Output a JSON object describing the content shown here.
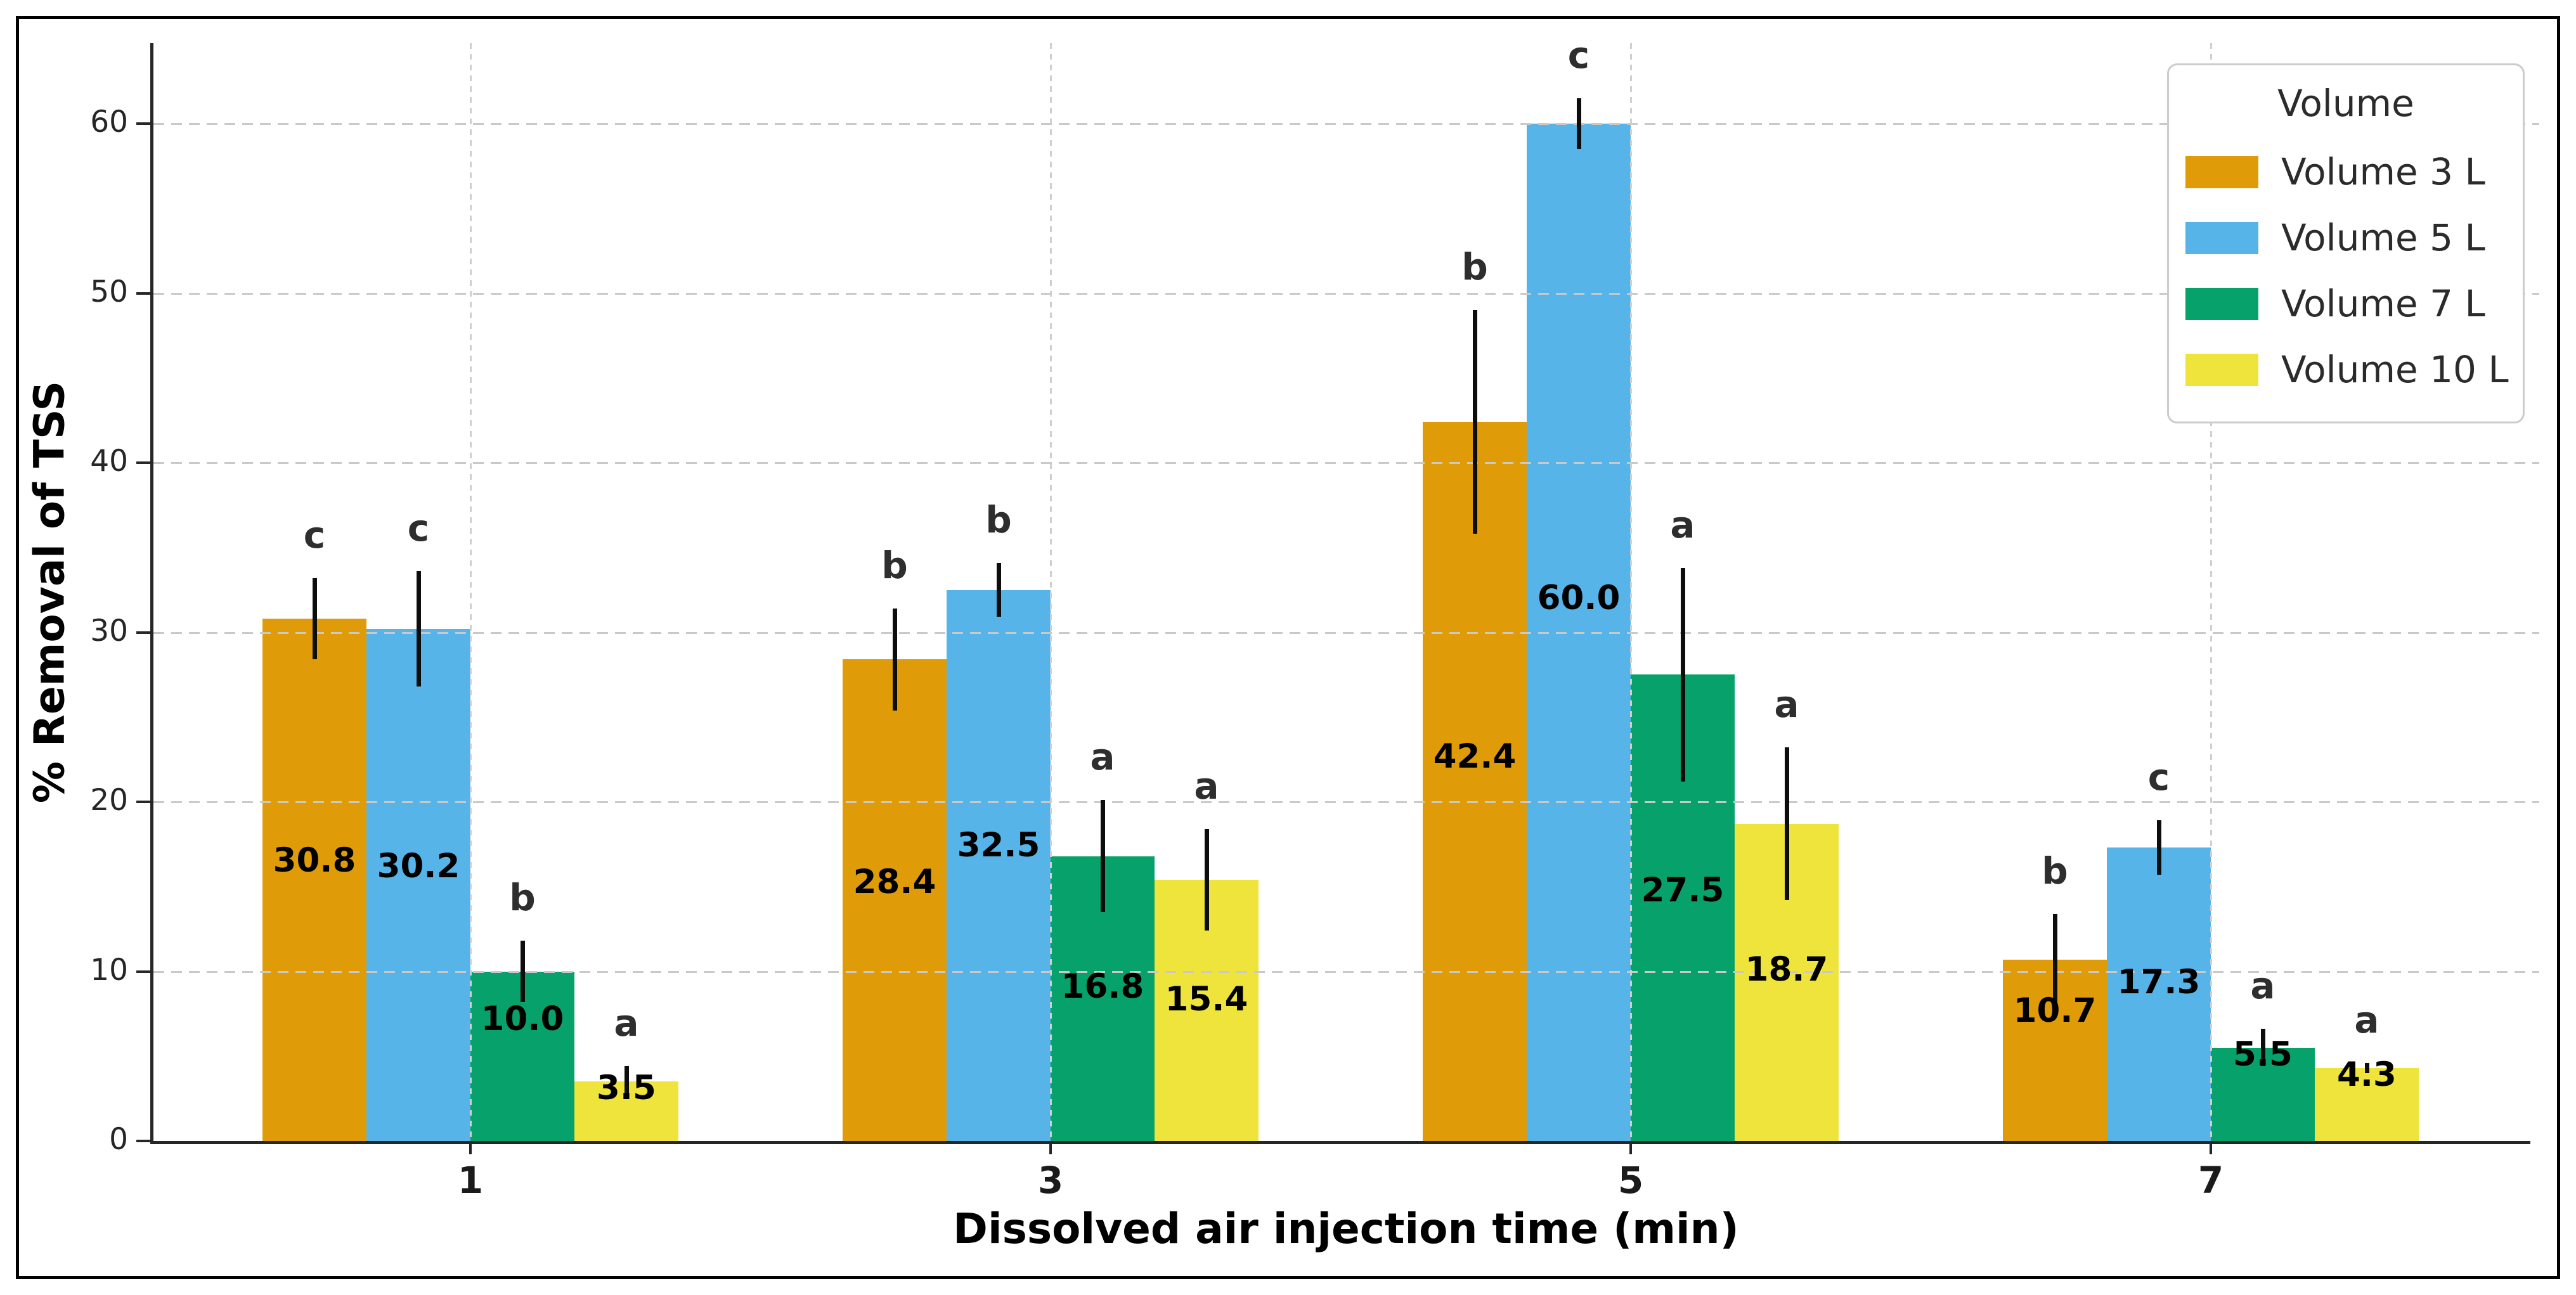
{
  "chart_data": {
    "type": "bar",
    "title": "",
    "xlabel": "Dissolved air injection time (min)",
    "ylabel": "% Removal of TSS",
    "categories": [
      "1",
      "3",
      "5",
      "7"
    ],
    "yticks": [
      0,
      10,
      20,
      30,
      40,
      50,
      60
    ],
    "ylim": [
      0,
      64.75
    ],
    "grid": true,
    "grid_over_bars": true,
    "legend": {
      "title": "Volume",
      "position": "upper right"
    },
    "series": [
      {
        "name": "Volume 3 L",
        "color": "#E09C08",
        "values": [
          30.8,
          28.4,
          42.4,
          10.7
        ],
        "errors": [
          2.4,
          3.0,
          6.6,
          2.7
        ],
        "sig_letters": [
          "c",
          "b",
          "b",
          "b"
        ]
      },
      {
        "name": "Volume 5 L",
        "color": "#57B4E9",
        "values": [
          30.2,
          32.5,
          60.0,
          17.3
        ],
        "errors": [
          3.4,
          1.6,
          1.5,
          1.6
        ],
        "sig_letters": [
          "c",
          "b",
          "c",
          "c"
        ]
      },
      {
        "name": "Volume 7 L",
        "color": "#07A26B",
        "values": [
          10.0,
          16.8,
          27.5,
          5.5
        ],
        "errors": [
          1.8,
          3.3,
          6.3,
          1.1
        ],
        "sig_letters": [
          "b",
          "a",
          "a",
          "a"
        ]
      },
      {
        "name": "Volume 10 L",
        "color": "#EFE43C",
        "values": [
          3.5,
          15.4,
          18.7,
          4.3
        ],
        "errors": [
          0.9,
          3.0,
          4.5,
          0.3
        ],
        "sig_letters": [
          "a",
          "a",
          "a",
          "a"
        ]
      }
    ]
  }
}
